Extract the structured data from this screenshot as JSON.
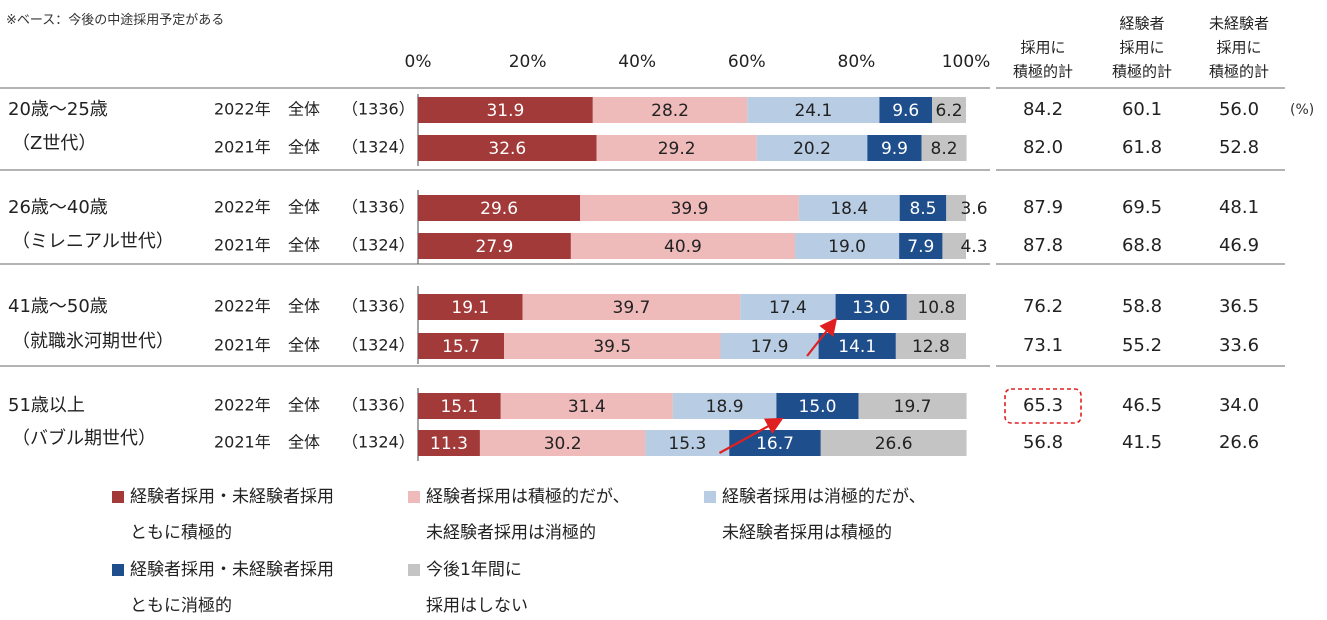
{
  "note": "※ベース：今後の中途採用予定がある",
  "percent_unit": "(%)",
  "axis_ticks": [
    "0%",
    "20%",
    "40%",
    "60%",
    "80%",
    "100%"
  ],
  "summary_headers": [
    [
      "採用に",
      "積極的計"
    ],
    [
      "経験者",
      "採用に",
      "積極的計"
    ],
    [
      "未経験者",
      "採用に",
      "積極的計"
    ]
  ],
  "colors": {
    "both_positive": "#a23a3a",
    "exp_positive_only": "#eebaba",
    "inexp_positive_only": "#b8cde4",
    "both_negative": "#1f4e8c",
    "no_hiring": "#c4c4c4",
    "arrow": "#e02020",
    "highlight": "#e02020"
  },
  "chart_data": {
    "type": "stacked-bar-horizontal",
    "xlim": [
      0,
      100
    ],
    "series_names": [
      "経験者採用・未経験者採用ともに積極的",
      "経験者採用は積極的だが、未経験者採用は消極的",
      "経験者採用は消極的だが、未経験者採用は積極的",
      "経験者採用・未経験者採用ともに消極的",
      "今後1年間に採用はしない"
    ],
    "groups": [
      {
        "name": "20歳～25歳",
        "sub": "（Z世代）",
        "rows": [
          {
            "year": "2022年",
            "scope": "全体",
            "n": "（1336）",
            "values": [
              31.9,
              28.2,
              24.1,
              9.6,
              6.2
            ],
            "labels": [
              "31.9",
              "28.2",
              "24.1",
              "9.6",
              "6.2"
            ],
            "summary": [
              "84.2",
              "60.1",
              "56.0"
            ]
          },
          {
            "year": "2021年",
            "scope": "全体",
            "n": "（1324）",
            "values": [
              32.6,
              29.2,
              20.2,
              9.9,
              8.2
            ],
            "labels": [
              "32.6",
              "29.2",
              "20.2",
              "9.9",
              "8.2"
            ],
            "summary": [
              "82.0",
              "61.8",
              "52.8"
            ]
          }
        ]
      },
      {
        "name": "26歳～40歳",
        "sub": "（ミレニアル世代）",
        "rows": [
          {
            "year": "2022年",
            "scope": "全体",
            "n": "（1336）",
            "values": [
              29.6,
              39.9,
              18.4,
              8.5,
              3.6
            ],
            "labels": [
              "29.6",
              "39.9",
              "18.4",
              "8.5",
              "3.6"
            ],
            "summary": [
              "87.9",
              "69.5",
              "48.1"
            ]
          },
          {
            "year": "2021年",
            "scope": "全体",
            "n": "（1324）",
            "values": [
              27.9,
              40.9,
              19.0,
              7.9,
              4.3
            ],
            "labels": [
              "27.9",
              "40.9",
              "19.0",
              "7.9",
              "4.3"
            ],
            "summary": [
              "87.8",
              "68.8",
              "46.9"
            ]
          }
        ]
      },
      {
        "name": "41歳～50歳",
        "sub": "（就職氷河期世代）",
        "rows": [
          {
            "year": "2022年",
            "scope": "全体",
            "n": "（1336）",
            "values": [
              19.1,
              39.7,
              17.4,
              13.0,
              10.8
            ],
            "labels": [
              "19.1",
              "39.7",
              "17.4",
              "13.0",
              "10.8"
            ],
            "summary": [
              "76.2",
              "58.8",
              "36.5"
            ]
          },
          {
            "year": "2021年",
            "scope": "全体",
            "n": "（1324）",
            "values": [
              15.7,
              39.5,
              17.9,
              14.1,
              12.8
            ],
            "labels": [
              "15.7",
              "39.5",
              "17.9",
              "14.1",
              "12.8"
            ],
            "summary": [
              "73.1",
              "55.2",
              "33.6"
            ]
          }
        ]
      },
      {
        "name": "51歳以上",
        "sub": "（バブル期世代）",
        "rows": [
          {
            "year": "2022年",
            "scope": "全体",
            "n": "（1336）",
            "values": [
              15.1,
              31.4,
              18.9,
              15.0,
              19.7
            ],
            "labels": [
              "15.1",
              "31.4",
              "18.9",
              "15.0",
              "19.7"
            ],
            "summary": [
              "65.3",
              "46.5",
              "34.0"
            ]
          },
          {
            "year": "2021年",
            "scope": "全体",
            "n": "（1324）",
            "values": [
              11.3,
              30.2,
              15.3,
              16.7,
              26.6
            ],
            "labels": [
              "11.3",
              "30.2",
              "15.3",
              "16.7",
              "26.6"
            ],
            "summary": [
              "56.8",
              "41.5",
              "26.6"
            ]
          }
        ]
      }
    ],
    "annotations": [
      {
        "type": "arrow",
        "group": 2,
        "from_value": 71,
        "to_value": 76,
        "label": "increase"
      },
      {
        "type": "arrow",
        "group": 3,
        "from_value": 55,
        "to_value": 66,
        "label": "increase"
      },
      {
        "type": "highlight-box",
        "group": 3,
        "row": 0,
        "column": 0,
        "value": "65.3"
      }
    ]
  },
  "legend": [
    {
      "lines": [
        "経験者採用・未経験者採用",
        "ともに積極的"
      ],
      "color_key": "both_positive"
    },
    {
      "lines": [
        "経験者採用は積極的だが、",
        "未経験者採用は消極的"
      ],
      "color_key": "exp_positive_only"
    },
    {
      "lines": [
        "経験者採用は消極的だが、",
        "未経験者採用は積極的"
      ],
      "color_key": "inexp_positive_only"
    },
    {
      "lines": [
        "経験者採用・未経験者採用",
        "ともに消極的"
      ],
      "color_key": "both_negative"
    },
    {
      "lines": [
        "今後1年間に",
        "採用はしない"
      ],
      "color_key": "no_hiring"
    }
  ]
}
